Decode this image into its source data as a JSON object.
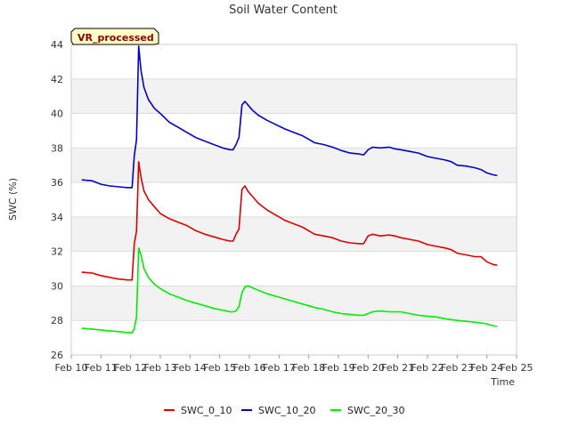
{
  "chart_data": {
    "type": "line",
    "title": "Soil Water Content",
    "xlabel": "Time",
    "ylabel": "SWC (%)",
    "badge": "VR_processed",
    "x_unit": "day of February",
    "xlim": [
      10,
      25
    ],
    "ylim": [
      26,
      44
    ],
    "yticks": [
      26,
      28,
      30,
      32,
      34,
      36,
      38,
      40,
      42,
      44
    ],
    "xticks": [
      {
        "value": 10,
        "label": "Feb 10"
      },
      {
        "value": 11,
        "label": "Feb 11"
      },
      {
        "value": 12,
        "label": "Feb 12"
      },
      {
        "value": 13,
        "label": "Feb 13"
      },
      {
        "value": 14,
        "label": "Feb 14"
      },
      {
        "value": 15,
        "label": "Feb 15"
      },
      {
        "value": 16,
        "label": "Feb 16"
      },
      {
        "value": 17,
        "label": "Feb 17"
      },
      {
        "value": 18,
        "label": "Feb 18"
      },
      {
        "value": 19,
        "label": "Feb 19"
      },
      {
        "value": 20,
        "label": "Feb 20"
      },
      {
        "value": 21,
        "label": "Feb 21"
      },
      {
        "value": 22,
        "label": "Feb 22"
      },
      {
        "value": 23,
        "label": "Feb 23"
      },
      {
        "value": 24,
        "label": "Feb 24"
      },
      {
        "value": 25,
        "label": "Feb 25"
      }
    ],
    "grid": true,
    "legend_position": "bottom",
    "series": [
      {
        "name": "SWC_0_10",
        "color": "#dd0000",
        "points": [
          [
            10.35,
            30.8
          ],
          [
            10.7,
            30.75
          ],
          [
            11.0,
            30.6
          ],
          [
            11.3,
            30.5
          ],
          [
            11.6,
            30.4
          ],
          [
            11.9,
            30.35
          ],
          [
            12.05,
            30.35
          ],
          [
            12.12,
            32.4
          ],
          [
            12.2,
            33.2
          ],
          [
            12.27,
            37.2
          ],
          [
            12.35,
            36.3
          ],
          [
            12.45,
            35.5
          ],
          [
            12.6,
            35.0
          ],
          [
            12.8,
            34.6
          ],
          [
            13.0,
            34.2
          ],
          [
            13.3,
            33.9
          ],
          [
            13.6,
            33.7
          ],
          [
            13.9,
            33.5
          ],
          [
            14.2,
            33.2
          ],
          [
            14.5,
            33.0
          ],
          [
            14.8,
            32.85
          ],
          [
            15.1,
            32.7
          ],
          [
            15.35,
            32.6
          ],
          [
            15.45,
            32.6
          ],
          [
            15.55,
            33.0
          ],
          [
            15.65,
            33.3
          ],
          [
            15.75,
            35.6
          ],
          [
            15.85,
            35.8
          ],
          [
            15.95,
            35.5
          ],
          [
            16.1,
            35.2
          ],
          [
            16.3,
            34.8
          ],
          [
            16.6,
            34.4
          ],
          [
            16.9,
            34.1
          ],
          [
            17.2,
            33.8
          ],
          [
            17.5,
            33.6
          ],
          [
            17.8,
            33.4
          ],
          [
            18.0,
            33.2
          ],
          [
            18.2,
            33.0
          ],
          [
            18.5,
            32.9
          ],
          [
            18.8,
            32.8
          ],
          [
            19.1,
            32.6
          ],
          [
            19.4,
            32.5
          ],
          [
            19.7,
            32.45
          ],
          [
            19.85,
            32.45
          ],
          [
            20.0,
            32.9
          ],
          [
            20.15,
            33.0
          ],
          [
            20.4,
            32.9
          ],
          [
            20.7,
            32.95
          ],
          [
            20.9,
            32.9
          ],
          [
            21.1,
            32.8
          ],
          [
            21.4,
            32.7
          ],
          [
            21.7,
            32.6
          ],
          [
            22.0,
            32.4
          ],
          [
            22.3,
            32.3
          ],
          [
            22.6,
            32.2
          ],
          [
            22.8,
            32.1
          ],
          [
            23.0,
            31.9
          ],
          [
            23.3,
            31.8
          ],
          [
            23.6,
            31.7
          ],
          [
            23.8,
            31.7
          ],
          [
            24.0,
            31.4
          ],
          [
            24.2,
            31.25
          ],
          [
            24.35,
            31.2
          ]
        ]
      },
      {
        "name": "SWC_10_20",
        "color": "#0000cc",
        "points": [
          [
            10.35,
            36.15
          ],
          [
            10.7,
            36.1
          ],
          [
            11.0,
            35.9
          ],
          [
            11.3,
            35.8
          ],
          [
            11.6,
            35.75
          ],
          [
            11.9,
            35.7
          ],
          [
            12.05,
            35.7
          ],
          [
            12.12,
            37.5
          ],
          [
            12.2,
            38.5
          ],
          [
            12.27,
            43.9
          ],
          [
            12.35,
            42.5
          ],
          [
            12.45,
            41.5
          ],
          [
            12.6,
            40.8
          ],
          [
            12.8,
            40.3
          ],
          [
            13.0,
            40.0
          ],
          [
            13.3,
            39.5
          ],
          [
            13.6,
            39.2
          ],
          [
            13.9,
            38.9
          ],
          [
            14.2,
            38.6
          ],
          [
            14.5,
            38.4
          ],
          [
            14.8,
            38.2
          ],
          [
            15.1,
            38.0
          ],
          [
            15.35,
            37.9
          ],
          [
            15.45,
            37.9
          ],
          [
            15.55,
            38.2
          ],
          [
            15.65,
            38.6
          ],
          [
            15.75,
            40.5
          ],
          [
            15.85,
            40.7
          ],
          [
            15.95,
            40.5
          ],
          [
            16.1,
            40.2
          ],
          [
            16.3,
            39.9
          ],
          [
            16.6,
            39.6
          ],
          [
            16.9,
            39.35
          ],
          [
            17.2,
            39.1
          ],
          [
            17.5,
            38.9
          ],
          [
            17.8,
            38.7
          ],
          [
            18.0,
            38.5
          ],
          [
            18.2,
            38.3
          ],
          [
            18.5,
            38.2
          ],
          [
            18.8,
            38.05
          ],
          [
            19.1,
            37.85
          ],
          [
            19.4,
            37.7
          ],
          [
            19.7,
            37.65
          ],
          [
            19.85,
            37.6
          ],
          [
            20.0,
            37.9
          ],
          [
            20.15,
            38.05
          ],
          [
            20.4,
            38.0
          ],
          [
            20.7,
            38.05
          ],
          [
            20.9,
            37.95
          ],
          [
            21.1,
            37.9
          ],
          [
            21.4,
            37.8
          ],
          [
            21.7,
            37.7
          ],
          [
            22.0,
            37.5
          ],
          [
            22.3,
            37.4
          ],
          [
            22.6,
            37.3
          ],
          [
            22.8,
            37.2
          ],
          [
            23.0,
            37.0
          ],
          [
            23.3,
            36.95
          ],
          [
            23.6,
            36.85
          ],
          [
            23.8,
            36.75
          ],
          [
            24.0,
            36.55
          ],
          [
            24.2,
            36.45
          ],
          [
            24.35,
            36.4
          ]
        ]
      },
      {
        "name": "SWC_20_30",
        "color": "#00ee00",
        "points": [
          [
            10.35,
            27.55
          ],
          [
            10.7,
            27.5
          ],
          [
            11.0,
            27.45
          ],
          [
            11.3,
            27.4
          ],
          [
            11.6,
            27.35
          ],
          [
            11.9,
            27.3
          ],
          [
            12.05,
            27.3
          ],
          [
            12.12,
            27.5
          ],
          [
            12.2,
            28.2
          ],
          [
            12.27,
            32.2
          ],
          [
            12.35,
            31.8
          ],
          [
            12.45,
            31.0
          ],
          [
            12.6,
            30.5
          ],
          [
            12.8,
            30.1
          ],
          [
            13.0,
            29.85
          ],
          [
            13.3,
            29.55
          ],
          [
            13.6,
            29.35
          ],
          [
            13.9,
            29.15
          ],
          [
            14.2,
            29.0
          ],
          [
            14.5,
            28.85
          ],
          [
            14.8,
            28.7
          ],
          [
            15.1,
            28.6
          ],
          [
            15.35,
            28.5
          ],
          [
            15.45,
            28.5
          ],
          [
            15.55,
            28.55
          ],
          [
            15.65,
            28.8
          ],
          [
            15.75,
            29.6
          ],
          [
            15.85,
            29.95
          ],
          [
            15.95,
            30.0
          ],
          [
            16.1,
            29.9
          ],
          [
            16.3,
            29.75
          ],
          [
            16.6,
            29.55
          ],
          [
            16.9,
            29.4
          ],
          [
            17.2,
            29.25
          ],
          [
            17.5,
            29.1
          ],
          [
            17.8,
            28.95
          ],
          [
            18.0,
            28.85
          ],
          [
            18.2,
            28.75
          ],
          [
            18.5,
            28.65
          ],
          [
            18.8,
            28.5
          ],
          [
            19.1,
            28.4
          ],
          [
            19.4,
            28.35
          ],
          [
            19.7,
            28.3
          ],
          [
            19.85,
            28.3
          ],
          [
            20.0,
            28.4
          ],
          [
            20.15,
            28.5
          ],
          [
            20.4,
            28.55
          ],
          [
            20.7,
            28.5
          ],
          [
            20.9,
            28.5
          ],
          [
            21.1,
            28.5
          ],
          [
            21.4,
            28.4
          ],
          [
            21.7,
            28.3
          ],
          [
            22.0,
            28.25
          ],
          [
            22.3,
            28.2
          ],
          [
            22.6,
            28.1
          ],
          [
            22.8,
            28.05
          ],
          [
            23.0,
            28.0
          ],
          [
            23.3,
            27.95
          ],
          [
            23.6,
            27.9
          ],
          [
            23.8,
            27.85
          ],
          [
            24.0,
            27.8
          ],
          [
            24.2,
            27.7
          ],
          [
            24.35,
            27.65
          ]
        ]
      }
    ]
  }
}
